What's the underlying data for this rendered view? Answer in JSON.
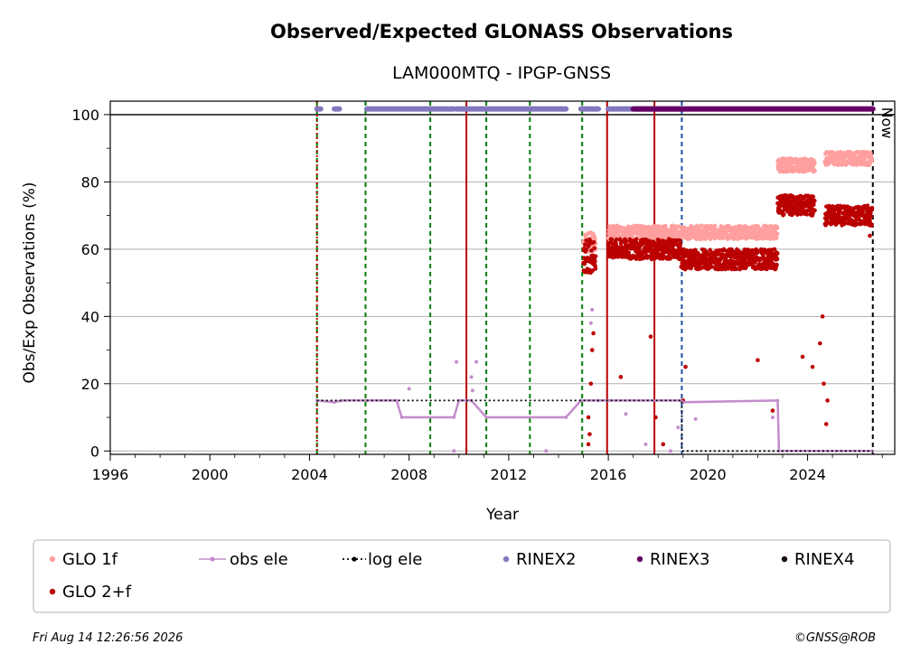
{
  "chart_data": {
    "type": "scatter",
    "title": "Observed/Expected GLONASS Observations",
    "subtitle": "LAM000MTQ - IPGP-GNSS",
    "xlabel": "Year",
    "ylabel": "Obs/Exp Observations (%)",
    "xlim": [
      1996.0,
      2027.5
    ],
    "ylim": [
      -1,
      104
    ],
    "xticks": [
      1996,
      2000,
      2004,
      2008,
      2012,
      2016,
      2020,
      2024
    ],
    "yticks": [
      0,
      20,
      40,
      60,
      80,
      100
    ],
    "grid": "horizontal",
    "legend_position": "bottom",
    "now_label": "Now",
    "now_x": 2026.62,
    "colors": {
      "glo_1f": "#ff9f9f",
      "glo_2f": "#bb0000",
      "obs_ele": "#c38dcc",
      "log_ele": "#000000",
      "rinex2": "#8378bd",
      "rinex3": "#660066",
      "rinex4": "#1a0a1a",
      "green_line": "#008000",
      "red_line": "#bb0000",
      "blue_line": "#1f4ea6"
    },
    "vertical_lines": [
      {
        "x": 2004.3,
        "style": "dashed",
        "color": "green_line"
      },
      {
        "x": 2004.3,
        "style": "dotted",
        "color": "red_line"
      },
      {
        "x": 2006.25,
        "style": "dashed",
        "color": "green_line"
      },
      {
        "x": 2008.85,
        "style": "dashed",
        "color": "green_line"
      },
      {
        "x": 2010.3,
        "style": "solid",
        "color": "red_line"
      },
      {
        "x": 2011.1,
        "style": "dashed",
        "color": "green_line"
      },
      {
        "x": 2012.85,
        "style": "dashed",
        "color": "green_line"
      },
      {
        "x": 2014.95,
        "style": "dashed",
        "color": "green_line"
      },
      {
        "x": 2015.95,
        "style": "solid",
        "color": "red_line"
      },
      {
        "x": 2017.85,
        "style": "solid",
        "color": "red_line"
      },
      {
        "x": 2018.95,
        "style": "dashed",
        "color": "blue_line"
      },
      {
        "x": 2026.62,
        "style": "dashed",
        "color": "log_ele"
      }
    ],
    "series": [
      {
        "name": "GLO 1f",
        "key": "glo_1f",
        "kind": "scatter",
        "segments": [
          {
            "x0": 2015.0,
            "x1": 2015.5,
            "y": 62,
            "jitter": 3
          },
          {
            "x0": 2016.0,
            "x1": 2018.9,
            "y": 65,
            "jitter": 2
          },
          {
            "x0": 2018.9,
            "x1": 2022.8,
            "y": 65,
            "jitter": 2
          },
          {
            "x0": 2022.8,
            "x1": 2024.3,
            "y": 85,
            "jitter": 2
          },
          {
            "x0": 2024.7,
            "x1": 2026.6,
            "y": 87,
            "jitter": 2
          }
        ]
      },
      {
        "name": "GLO 2+f",
        "key": "glo_2f",
        "kind": "scatter",
        "segments": [
          {
            "x0": 2015.0,
            "x1": 2015.5,
            "y": 58,
            "jitter": 5
          },
          {
            "x0": 2016.0,
            "x1": 2018.9,
            "y": 60,
            "jitter": 3
          },
          {
            "x0": 2018.9,
            "x1": 2022.8,
            "y": 57,
            "jitter": 3
          },
          {
            "x0": 2022.8,
            "x1": 2024.3,
            "y": 73,
            "jitter": 3
          },
          {
            "x0": 2024.7,
            "x1": 2026.6,
            "y": 70,
            "jitter": 3
          }
        ],
        "outliers": [
          [
            2015.2,
            10
          ],
          [
            2015.25,
            5
          ],
          [
            2015.3,
            20
          ],
          [
            2015.35,
            30
          ],
          [
            2015.4,
            35
          ],
          [
            2015.2,
            2
          ],
          [
            2016.5,
            22
          ],
          [
            2017.7,
            34
          ],
          [
            2017.9,
            10
          ],
          [
            2018.2,
            2
          ],
          [
            2019.1,
            25
          ],
          [
            2019.0,
            15
          ],
          [
            2022.0,
            27
          ],
          [
            2022.6,
            12
          ],
          [
            2023.8,
            28
          ],
          [
            2024.2,
            25
          ],
          [
            2024.5,
            32
          ],
          [
            2024.6,
            40
          ],
          [
            2024.65,
            20
          ],
          [
            2024.75,
            8
          ],
          [
            2024.8,
            15
          ],
          [
            2026.5,
            64
          ]
        ]
      },
      {
        "name": "obs ele",
        "key": "obs_ele",
        "kind": "line",
        "points": [
          [
            2004.3,
            15
          ],
          [
            2005.0,
            14.5
          ],
          [
            2005.3,
            15
          ],
          [
            2006.3,
            15
          ],
          [
            2007.5,
            15
          ],
          [
            2007.7,
            10
          ],
          [
            2009.8,
            10
          ],
          [
            2010.0,
            15
          ],
          [
            2010.3,
            15
          ],
          [
            2010.5,
            15
          ],
          [
            2011.1,
            10
          ],
          [
            2014.3,
            10
          ],
          [
            2014.9,
            15
          ],
          [
            2015.6,
            15
          ],
          [
            2016.0,
            15
          ],
          [
            2018.9,
            15
          ],
          [
            2019.0,
            14.5
          ],
          [
            2022.8,
            15
          ],
          [
            2022.85,
            0
          ],
          [
            2026.6,
            0
          ]
        ],
        "outliers": [
          [
            2008.0,
            18.5
          ],
          [
            2009.8,
            0
          ],
          [
            2009.9,
            26.5
          ],
          [
            2010.5,
            22
          ],
          [
            2010.55,
            18
          ],
          [
            2010.7,
            26.5
          ],
          [
            2013.5,
            0
          ],
          [
            2015.35,
            42
          ],
          [
            2015.3,
            38
          ],
          [
            2016.7,
            11
          ],
          [
            2017.5,
            2
          ],
          [
            2018.5,
            0
          ],
          [
            2018.8,
            7
          ],
          [
            2019.5,
            9.5
          ],
          [
            2022.6,
            10
          ]
        ]
      },
      {
        "name": "log ele",
        "key": "log_ele",
        "kind": "dotted-line",
        "points": [
          [
            2004.3,
            15
          ],
          [
            2018.95,
            15
          ],
          [
            2018.95,
            0
          ],
          [
            2026.62,
            0
          ]
        ]
      },
      {
        "name": "RINEX2",
        "key": "rinex2",
        "kind": "bar-strip",
        "y": 101.7,
        "ranges": [
          [
            2004.3,
            2004.45
          ],
          [
            2005.0,
            2005.2
          ],
          [
            2006.3,
            2009.8
          ],
          [
            2009.9,
            2014.3
          ],
          [
            2014.9,
            2015.6
          ],
          [
            2016.0,
            2018.9
          ],
          [
            2019.0,
            2019.05
          ]
        ]
      },
      {
        "name": "RINEX3",
        "key": "rinex3",
        "kind": "bar-strip",
        "y": 101.7,
        "ranges": [
          [
            2017.0,
            2018.95
          ],
          [
            2018.95,
            2026.62
          ]
        ]
      },
      {
        "name": "RINEX4",
        "key": "rinex4",
        "kind": "bar-strip",
        "y": 101.7,
        "ranges": []
      }
    ],
    "legend": [
      {
        "label": "GLO 1f",
        "key": "glo_1f",
        "marker": "dot"
      },
      {
        "label": "obs ele",
        "key": "obs_ele",
        "marker": "line-dot"
      },
      {
        "label": "log ele",
        "key": "log_ele",
        "marker": "dotted-line"
      },
      {
        "label": "RINEX2",
        "key": "rinex2",
        "marker": "dot"
      },
      {
        "label": "RINEX3",
        "key": "rinex3",
        "marker": "dot"
      },
      {
        "label": "RINEX4",
        "key": "rinex4",
        "marker": "dot"
      },
      {
        "label": "GLO 2+f",
        "key": "glo_2f",
        "marker": "dot"
      }
    ]
  },
  "footer": {
    "timestamp": "Fri Aug 14 12:26:56 2026",
    "credit": "©GNSS@ROB"
  }
}
